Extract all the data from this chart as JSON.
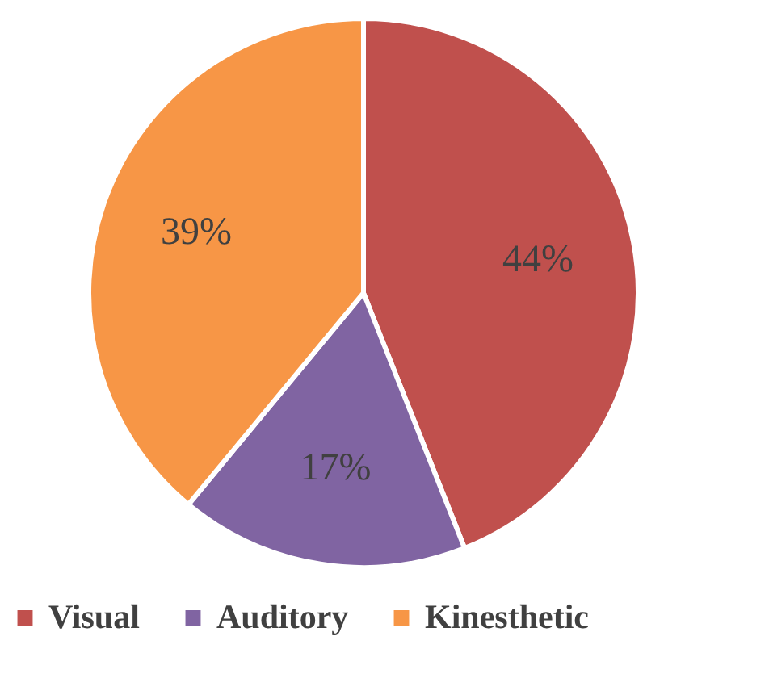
{
  "chart_data": {
    "type": "pie",
    "categories": [
      "Visual",
      "Auditory",
      "Kinesthetic"
    ],
    "values": [
      44,
      17,
      39
    ],
    "colors": [
      "#c0504d",
      "#8064a2",
      "#f79646"
    ],
    "value_labels": [
      "44%",
      "17%",
      "39%"
    ],
    "legend": "bottom"
  }
}
